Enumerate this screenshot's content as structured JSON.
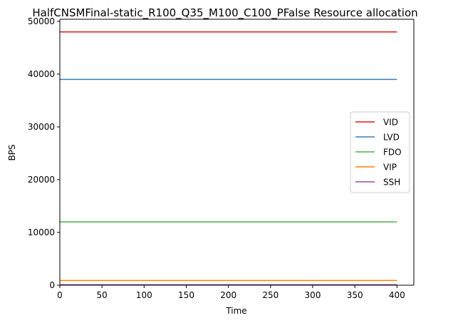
{
  "chart_data": {
    "type": "line",
    "title": "HalfCNSMFinal-static_R100_Q35_M100_C100_PFalse Resource allocation",
    "xlabel": "Time",
    "ylabel": "BPS",
    "xlim": [
      0,
      420
    ],
    "ylim": [
      0,
      50400
    ],
    "x_ticks": [
      0,
      50,
      100,
      150,
      200,
      250,
      300,
      350,
      400
    ],
    "y_ticks": [
      0,
      10000,
      20000,
      30000,
      40000,
      50000
    ],
    "grid": false,
    "legend_position": "center-right",
    "series": [
      {
        "name": "VID",
        "color": "#e41a1c",
        "x": [
          0,
          400
        ],
        "values": [
          48000,
          48000
        ]
      },
      {
        "name": "LVD",
        "color": "#377eb8",
        "x": [
          0,
          400
        ],
        "values": [
          39000,
          39000
        ]
      },
      {
        "name": "FDO",
        "color": "#4daf4a",
        "x": [
          0,
          400
        ],
        "values": [
          12000,
          12000
        ]
      },
      {
        "name": "VIP",
        "color": "#ff7f00",
        "x": [
          0,
          400
        ],
        "values": [
          900,
          900
        ]
      },
      {
        "name": "SSH",
        "color": "#984ea3",
        "x": [
          0,
          400
        ],
        "values": [
          100,
          100
        ]
      }
    ]
  }
}
